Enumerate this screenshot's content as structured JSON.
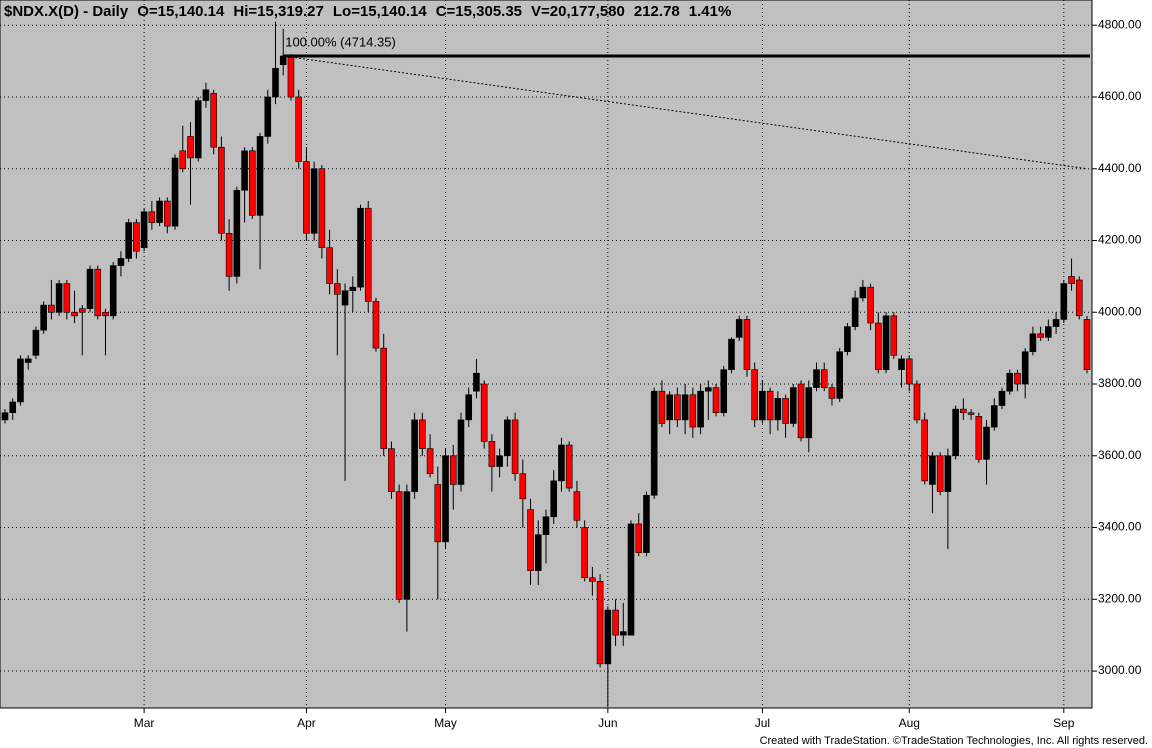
{
  "chart_data": {
    "type": "candlestick",
    "header": [
      "$NDX.X(D) - Daily",
      "O=15,140.14",
      "Hi=15,319.27",
      "Lo=15,140.14",
      "C=15,305.35",
      "V=20,177,580",
      "212.78",
      "1.41%"
    ],
    "footer": "Created with TradeStation. ©TradeStation Technologies, Inc. All rights reserved.",
    "categories": [
      null,
      null,
      null,
      null,
      null,
      null,
      null,
      null,
      null,
      null,
      null,
      null,
      null,
      null,
      null,
      null,
      null,
      null,
      "Mar",
      null,
      null,
      null,
      null,
      null,
      null,
      null,
      null,
      null,
      null,
      null,
      null,
      null,
      null,
      null,
      null,
      null,
      null,
      null,
      null,
      "Apr",
      null,
      null,
      null,
      null,
      null,
      null,
      null,
      null,
      null,
      null,
      null,
      null,
      null,
      null,
      null,
      null,
      null,
      "May",
      null,
      null,
      null,
      null,
      null,
      null,
      null,
      null,
      null,
      null,
      null,
      null,
      null,
      null,
      null,
      null,
      null,
      null,
      null,
      null,
      "Jun",
      null,
      null,
      null,
      null,
      null,
      null,
      null,
      null,
      null,
      null,
      null,
      null,
      null,
      null,
      null,
      null,
      null,
      null,
      null,
      "Jul",
      null,
      null,
      null,
      null,
      null,
      null,
      null,
      null,
      null,
      null,
      null,
      null,
      null,
      null,
      null,
      null,
      null,
      null,
      "Aug",
      null,
      null,
      null,
      null,
      null,
      null,
      null,
      null,
      null,
      null,
      null,
      null,
      null,
      null,
      null,
      null,
      null,
      null,
      null,
      "Sep",
      null,
      null,
      null
    ],
    "open": [
      3700,
      3720,
      3750,
      3860,
      3880,
      3950,
      4020,
      4000,
      4080,
      4000,
      4010,
      4010,
      4120,
      4000,
      3990,
      4130,
      4150,
      4250,
      4180,
      4280,
      4250,
      4310,
      4240,
      4450,
      4490,
      4430,
      4590,
      4610,
      4460,
      4220,
      4100,
      4340,
      4450,
      4270,
      4490,
      4600,
      4690,
      4710,
      4600,
      4420,
      4220,
      4400,
      4180,
      4080,
      4020,
      4060,
      4070,
      4290,
      4030,
      3900,
      3620,
      3500,
      3200,
      3500,
      3700,
      3620,
      3520,
      3360,
      3600,
      3520,
      3700,
      3780,
      3800,
      3640,
      3570,
      3600,
      3700,
      3550,
      3450,
      3280,
      3380,
      3430,
      3530,
      3630,
      3500,
      3400,
      3260,
      3250,
      3020,
      3170,
      3100,
      3100,
      3410,
      3330,
      3490,
      3780,
      3700,
      3770,
      3700,
      3770,
      3680,
      3780,
      3790,
      3720,
      3840,
      3930,
      3980,
      3840,
      3700,
      3780,
      3700,
      3760,
      3690,
      3800,
      3650,
      3790,
      3840,
      3790,
      3760,
      3890,
      3960,
      4040,
      4070,
      3970,
      3840,
      3990,
      3840,
      3870,
      3800,
      3700,
      3520,
      3600,
      3500,
      3600,
      3730,
      3720,
      3710,
      3590,
      3680,
      3740,
      3780,
      3830,
      3800,
      3890,
      3940,
      3930,
      3960,
      3980,
      4100,
      4090,
      3980
    ],
    "high": [
      3730,
      3760,
      3880,
      3880,
      3960,
      4030,
      4090,
      4090,
      4090,
      4060,
      4020,
      4130,
      4130,
      4010,
      4140,
      4170,
      4260,
      4260,
      4290,
      4310,
      4320,
      4320,
      4440,
      4520,
      4530,
      4600,
      4640,
      4620,
      4490,
      4260,
      4350,
      4460,
      4460,
      4500,
      4620,
      4810,
      4790,
      4720,
      4620,
      4460,
      4420,
      4410,
      4230,
      4120,
      4080,
      4100,
      4300,
      4310,
      4040,
      3940,
      3640,
      3520,
      3520,
      3720,
      3720,
      3660,
      3570,
      3620,
      3630,
      3720,
      3790,
      3870,
      3810,
      3660,
      3620,
      3710,
      3720,
      3590,
      3480,
      3420,
      3450,
      3560,
      3650,
      3640,
      3530,
      3420,
      3290,
      3270,
      3180,
      3200,
      3190,
      3420,
      3440,
      3500,
      3790,
      3810,
      3780,
      3790,
      3800,
      3790,
      3800,
      3810,
      3800,
      3850,
      3930,
      3990,
      3990,
      3860,
      3810,
      3790,
      3780,
      3770,
      3800,
      3810,
      3810,
      3860,
      3860,
      3800,
      3900,
      3970,
      4060,
      4090,
      4080,
      4000,
      4000,
      4000,
      3880,
      3880,
      3810,
      3720,
      3610,
      3610,
      3620,
      3740,
      3760,
      3730,
      3720,
      3700,
      3760,
      3790,
      3840,
      3840,
      3900,
      3960,
      3960,
      3980,
      4000,
      4090,
      4150,
      4100,
      3990
    ],
    "low": [
      3690,
      3700,
      3740,
      3840,
      3870,
      3940,
      3980,
      3990,
      3980,
      3970,
      3880,
      4000,
      3980,
      3880,
      3980,
      4100,
      4140,
      4150,
      4170,
      4230,
      4240,
      4220,
      4230,
      4390,
      4300,
      4420,
      4570,
      4440,
      4200,
      4060,
      4080,
      4250,
      4260,
      4120,
      4470,
      4580,
      4660,
      4590,
      4400,
      4200,
      4200,
      4150,
      4050,
      3880,
      3530,
      4000,
      4060,
      4000,
      3890,
      3600,
      3480,
      3190,
      3110,
      3480,
      3600,
      3540,
      3200,
      3340,
      3450,
      3500,
      3680,
      3760,
      3620,
      3500,
      3540,
      3570,
      3530,
      3400,
      3240,
      3240,
      3300,
      3410,
      3500,
      3500,
      3400,
      3250,
      3210,
      3010,
      2900,
      3070,
      3070,
      3100,
      3320,
      3320,
      3480,
      3680,
      3660,
      3680,
      3660,
      3650,
      3660,
      3700,
      3710,
      3710,
      3830,
      3920,
      3820,
      3680,
      3690,
      3660,
      3670,
      3650,
      3680,
      3640,
      3610,
      3780,
      3780,
      3740,
      3750,
      3880,
      3950,
      4030,
      3950,
      3830,
      3830,
      3870,
      3790,
      3780,
      3690,
      3520,
      3440,
      3490,
      3340,
      3590,
      3700,
      3700,
      3580,
      3520,
      3670,
      3730,
      3770,
      3780,
      3760,
      3880,
      3920,
      3920,
      3940,
      3970,
      4060,
      3980,
      3830
    ],
    "close": [
      3720,
      3750,
      3870,
      3870,
      3950,
      4020,
      4000,
      4080,
      4000,
      3990,
      4000,
      4120,
      3990,
      3990,
      4130,
      4150,
      4250,
      4170,
      4280,
      4250,
      4310,
      4240,
      4430,
      4400,
      4430,
      4590,
      4620,
      4460,
      4220,
      4100,
      4340,
      4450,
      4270,
      4490,
      4600,
      4680,
      4714.35,
      4600,
      4420,
      4220,
      4400,
      4180,
      4080,
      4050,
      4060,
      4070,
      4290,
      4030,
      3900,
      3620,
      3500,
      3200,
      3500,
      3700,
      3620,
      3550,
      3360,
      3600,
      3520,
      3700,
      3770,
      3830,
      3640,
      3570,
      3600,
      3700,
      3550,
      3480,
      3280,
      3380,
      3430,
      3530,
      3630,
      3510,
      3420,
      3260,
      3250,
      3020,
      3170,
      3100,
      3110,
      3410,
      3330,
      3490,
      3780,
      3690,
      3770,
      3700,
      3770,
      3680,
      3780,
      3790,
      3720,
      3840,
      3925,
      3980,
      3840,
      3700,
      3780,
      3700,
      3760,
      3690,
      3790,
      3650,
      3790,
      3840,
      3790,
      3760,
      3890,
      3960,
      4040,
      4070,
      3970,
      3840,
      3990,
      3880,
      3870,
      3800,
      3700,
      3530,
      3600,
      3500,
      3600,
      3730,
      3720,
      3715,
      3590,
      3680,
      3740,
      3780,
      3830,
      3800,
      3890,
      3940,
      3930,
      3960,
      3980,
      4080,
      4080,
      3990,
      3840
    ],
    "up_color": "#000000",
    "down_color": "#ff0000",
    "wick_color": "#000000",
    "level": {
      "value": 4714.35,
      "label": "100.00% (4714.35)"
    },
    "trendline": {
      "x": [
        36,
        140
      ],
      "y": [
        4714.35,
        4400
      ]
    },
    "ylim": [
      2897,
      4848
    ],
    "yticks": [
      {
        "value": 3000,
        "label": "3000.00"
      },
      {
        "value": 3200,
        "label": "3200.00"
      },
      {
        "value": 3400,
        "label": "3400.00"
      },
      {
        "value": 3600,
        "label": "3600.00"
      },
      {
        "value": 3800,
        "label": "3800.00"
      },
      {
        "value": 4000,
        "label": "4000.00"
      },
      {
        "value": 4200,
        "label": "4200.00"
      },
      {
        "value": 4400,
        "label": "4400.00"
      },
      {
        "value": 4600,
        "label": "4600.00"
      },
      {
        "value": 4800,
        "label": "4800.00"
      }
    ],
    "grid": true
  }
}
